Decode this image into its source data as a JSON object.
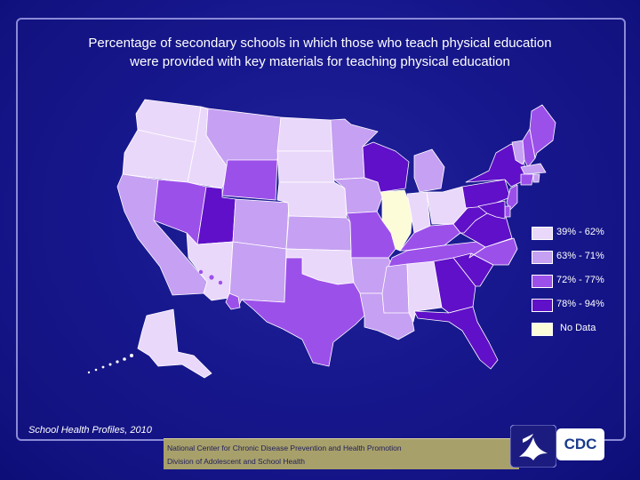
{
  "title": {
    "line1": "Percentage of secondary schools in which those who teach physical education",
    "line2": "were provided with key materials for teaching physical education"
  },
  "legend": [
    {
      "label": "39% - 62%",
      "color": "#ead8fa"
    },
    {
      "label": "63% - 71%",
      "color": "#c6a0f2"
    },
    {
      "label": "72% - 77%",
      "color": "#9c50ea"
    },
    {
      "label": "78% - 94%",
      "color": "#6010c8"
    },
    {
      "label": "No Data",
      "color": "#fcfcd8"
    }
  ],
  "states": {
    "WA": "#ead8fa",
    "OR": "#ead8fa",
    "ID": "#ead8fa",
    "CA": "#c6a0f2",
    "NV": "#9c50ea",
    "MT": "#c6a0f2",
    "WY": "#9c50ea",
    "UT": "#6010c8",
    "AZ": "#ead8fa",
    "CO": "#c6a0f2",
    "NM": "#c6a0f2",
    "ND": "#ead8fa",
    "SD": "#ead8fa",
    "NE": "#ead8fa",
    "KS": "#c6a0f2",
    "OK": "#ead8fa",
    "TX": "#9c50ea",
    "MN": "#c6a0f2",
    "IA": "#c6a0f2",
    "MO": "#9c50ea",
    "AR": "#c6a0f2",
    "LA": "#c6a0f2",
    "WI": "#6010c8",
    "IL": "#fcfcd8",
    "MI": "#c6a0f2",
    "IN": "#ead8fa",
    "OH": "#ead8fa",
    "KY": "#9c50ea",
    "TN": "#9c50ea",
    "MS": "#c6a0f2",
    "AL": "#ead8fa",
    "GA": "#6010c8",
    "FL": "#6010c8",
    "SC": "#6010c8",
    "NC": "#9c50ea",
    "VA": "#6010c8",
    "WV": "#6010c8",
    "PA": "#6010c8",
    "NY": "#6010c8",
    "VT": "#c6a0f2",
    "NH": "#9c50ea",
    "ME": "#9c50ea",
    "MA": "#c6a0f2",
    "CT": "#9c50ea",
    "RI": "#c6a0f2",
    "NJ": "#9c50ea",
    "DE": "#9c50ea",
    "MD": "#6010c8",
    "AK": "#ead8fa",
    "HI": "#9c50ea"
  },
  "source": "School Health Profiles, 2010",
  "footer": {
    "line1": "National Center for Chronic Disease Prevention and Health Promotion",
    "line2": "Division of Adolescent and School Health"
  },
  "logo": {
    "cdc": "CDC"
  },
  "colors": {
    "background": "#13138a",
    "border": "#8a8ad8",
    "footer_bar": "#a8a06a"
  }
}
